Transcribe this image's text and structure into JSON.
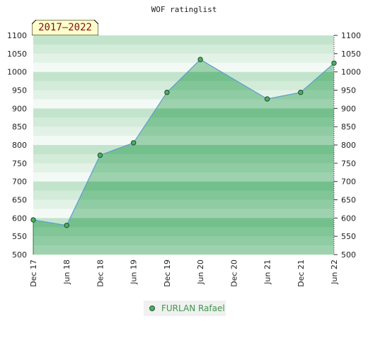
{
  "chart_data": {
    "type": "area",
    "title": "WOF ratinglist",
    "period_label": "2017–2022",
    "x_ticks": [
      "Dec 17",
      "Jun 18",
      "Dec 18",
      "Jun 19",
      "Dec 19",
      "Jun 20",
      "Dec 20",
      "Jun 21",
      "Dec 21",
      "Jun 22"
    ],
    "ylim": [
      500,
      1100
    ],
    "y_ticks": [
      500,
      550,
      600,
      650,
      700,
      750,
      800,
      850,
      900,
      950,
      1000,
      1050,
      1100
    ],
    "series": [
      {
        "name": "FURLAN Rafael",
        "color": "#4caf64",
        "points": [
          {
            "x": "Dec 17",
            "y": 595
          },
          {
            "x": "Jun 18",
            "y": 580
          },
          {
            "x": "Dec 18",
            "y": 772
          },
          {
            "x": "Jun 19",
            "y": 806
          },
          {
            "x": "Dec 19",
            "y": 944
          },
          {
            "x": "Jun 20",
            "y": 1034
          },
          {
            "x": "Jun 21",
            "y": 926
          },
          {
            "x": "Dec 21",
            "y": 944
          },
          {
            "x": "Jun 22",
            "y": 1024
          }
        ]
      }
    ],
    "legend_position": "bottom"
  }
}
